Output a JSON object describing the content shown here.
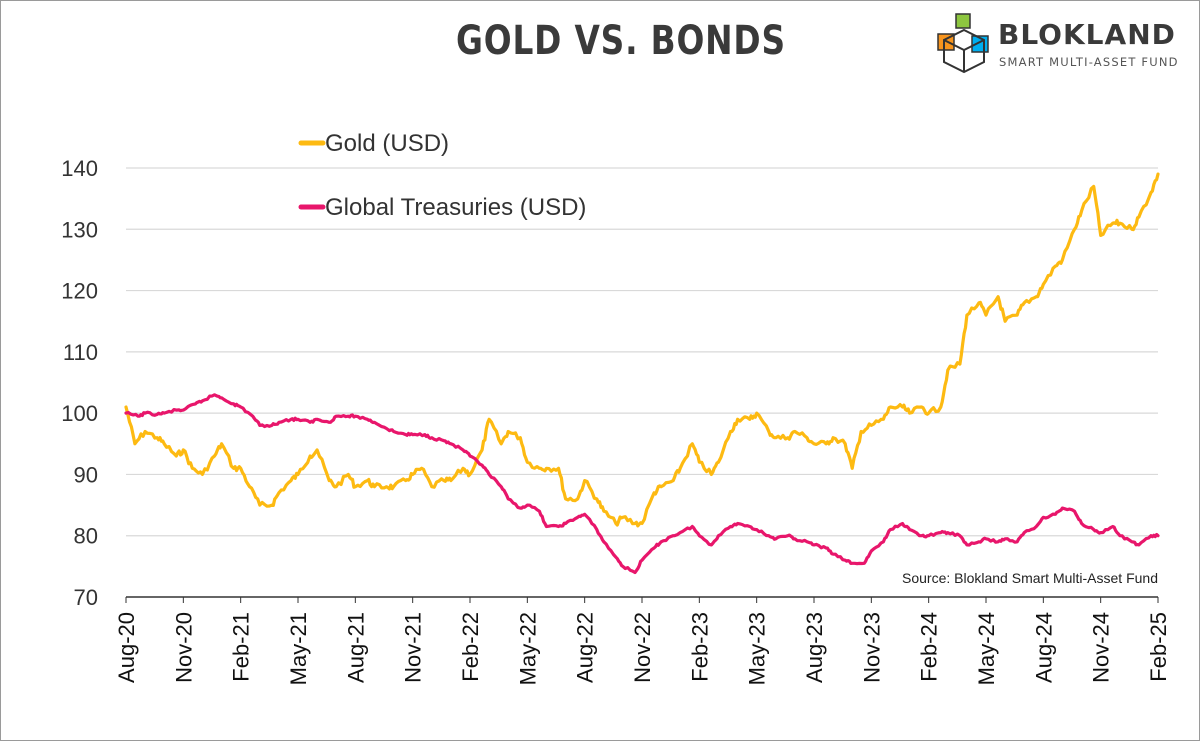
{
  "header": {
    "title": "GOLD VS. BONDS",
    "brand_name": "BLOKLAND",
    "brand_tagline": "SMART MULTI-ASSET FUND"
  },
  "source_note": "Source: Blokland Smart Multi-Asset Fund",
  "colors": {
    "gold": "#FDBA12",
    "treasuries": "#E8166B",
    "grid": "#d9d9d9",
    "axis_text": "#333333"
  },
  "chart_data": {
    "type": "line",
    "title": "GOLD VS. BONDS",
    "xlabel": "",
    "ylabel": "",
    "ylim": [
      70,
      140
    ],
    "yticks": [
      70,
      80,
      90,
      100,
      110,
      120,
      130,
      140
    ],
    "xlim": [
      "2020-08",
      "2025-02"
    ],
    "xticks": [
      "Aug-20",
      "Nov-20",
      "Feb-21",
      "May-21",
      "Aug-21",
      "Nov-21",
      "Feb-22",
      "May-22",
      "Aug-22",
      "Nov-22",
      "Feb-23",
      "May-23",
      "Aug-23",
      "Nov-23",
      "Feb-24",
      "May-24",
      "Aug-24",
      "Nov-24",
      "Feb-25"
    ],
    "grid": "horizontal",
    "legend_position": "top-left",
    "series": [
      {
        "name": "Gold (USD)",
        "color": "#FDBA12",
        "points": [
          [
            "2020-08",
            101
          ],
          [
            "2020-08-15",
            95
          ],
          [
            "2020-09",
            97
          ],
          [
            "2020-09-20",
            96
          ],
          [
            "2020-10",
            95
          ],
          [
            "2020-10-20",
            93
          ],
          [
            "2020-11",
            94
          ],
          [
            "2020-11-15",
            91
          ],
          [
            "2020-12",
            90
          ],
          [
            "2020-12-20",
            93
          ],
          [
            "2021-01",
            95
          ],
          [
            "2021-01-20",
            91
          ],
          [
            "2021-02",
            91
          ],
          [
            "2021-02-15",
            88
          ],
          [
            "2021-03",
            85
          ],
          [
            "2021-03-20",
            85
          ],
          [
            "2021-04",
            87
          ],
          [
            "2021-04-20",
            89
          ],
          [
            "2021-05",
            90
          ],
          [
            "2021-05-20",
            93
          ],
          [
            "2021-06",
            94
          ],
          [
            "2021-06-20",
            89
          ],
          [
            "2021-07",
            88
          ],
          [
            "2021-07-20",
            90
          ],
          [
            "2021-08",
            88
          ],
          [
            "2021-08-20",
            89
          ],
          [
            "2021-09",
            88
          ],
          [
            "2021-09-20",
            88
          ],
          [
            "2021-10",
            88
          ],
          [
            "2021-10-20",
            89
          ],
          [
            "2021-11",
            90
          ],
          [
            "2021-11-15",
            91
          ],
          [
            "2021-12",
            88
          ],
          [
            "2021-12-20",
            89
          ],
          [
            "2022-01",
            89
          ],
          [
            "2022-01-20",
            91
          ],
          [
            "2022-02",
            90
          ],
          [
            "2022-02-20",
            94
          ],
          [
            "2022-03",
            99
          ],
          [
            "2022-03-20",
            95
          ],
          [
            "2022-04",
            97
          ],
          [
            "2022-04-20",
            96
          ],
          [
            "2022-05",
            92
          ],
          [
            "2022-05-20",
            91
          ],
          [
            "2022-06",
            91
          ],
          [
            "2022-06-20",
            91
          ],
          [
            "2022-07",
            86
          ],
          [
            "2022-07-20",
            86
          ],
          [
            "2022-08",
            89
          ],
          [
            "2022-08-20",
            86
          ],
          [
            "2022-09",
            84
          ],
          [
            "2022-09-20",
            82
          ],
          [
            "2022-10",
            83
          ],
          [
            "2022-10-20",
            82
          ],
          [
            "2022-11",
            82
          ],
          [
            "2022-11-20",
            87
          ],
          [
            "2022-12",
            88
          ],
          [
            "2022-12-20",
            89
          ],
          [
            "2023-01",
            91
          ],
          [
            "2023-01-20",
            95
          ],
          [
            "2023-02",
            92
          ],
          [
            "2023-02-20",
            90
          ],
          [
            "2023-03",
            92
          ],
          [
            "2023-03-20",
            97
          ],
          [
            "2023-04",
            99
          ],
          [
            "2023-04-20",
            99
          ],
          [
            "2023-05",
            100
          ],
          [
            "2023-05-20",
            97
          ],
          [
            "2023-06",
            96
          ],
          [
            "2023-06-20",
            96
          ],
          [
            "2023-07",
            97
          ],
          [
            "2023-07-20",
            96
          ],
          [
            "2023-08",
            95
          ],
          [
            "2023-08-20",
            95
          ],
          [
            "2023-09",
            96
          ],
          [
            "2023-09-20",
            95
          ],
          [
            "2023-10",
            91
          ],
          [
            "2023-10-15",
            97
          ],
          [
            "2023-11",
            98
          ],
          [
            "2023-11-20",
            99
          ],
          [
            "2023-12",
            101
          ],
          [
            "2023-12-20",
            101
          ],
          [
            "2024-01",
            100
          ],
          [
            "2024-01-20",
            101
          ],
          [
            "2024-02",
            100
          ],
          [
            "2024-02-20",
            101
          ],
          [
            "2024-03",
            107
          ],
          [
            "2024-03-20",
            108
          ],
          [
            "2024-04",
            116
          ],
          [
            "2024-04-20",
            118
          ],
          [
            "2024-05",
            116
          ],
          [
            "2024-05-20",
            119
          ],
          [
            "2024-06",
            115
          ],
          [
            "2024-06-20",
            116
          ],
          [
            "2024-07",
            118
          ],
          [
            "2024-07-20",
            119
          ],
          [
            "2024-08",
            121
          ],
          [
            "2024-08-20",
            124
          ],
          [
            "2024-09",
            125
          ],
          [
            "2024-09-20",
            130
          ],
          [
            "2024-10",
            133
          ],
          [
            "2024-10-20",
            137
          ],
          [
            "2024-11",
            129
          ],
          [
            "2024-11-20",
            131
          ],
          [
            "2024-12",
            131
          ],
          [
            "2024-12-20",
            130
          ],
          [
            "2025-01",
            132
          ],
          [
            "2025-01-20",
            136
          ],
          [
            "2025-02",
            139
          ]
        ]
      },
      {
        "name": "Global Treasuries (USD)",
        "color": "#E8166B",
        "points": [
          [
            "2020-08",
            100
          ],
          [
            "2020-08-20",
            99.5
          ],
          [
            "2020-09",
            100
          ],
          [
            "2020-09-20",
            99.8
          ],
          [
            "2020-10",
            100
          ],
          [
            "2020-10-20",
            100.5
          ],
          [
            "2020-11",
            100.5
          ],
          [
            "2020-11-20",
            101.5
          ],
          [
            "2020-12",
            102
          ],
          [
            "2020-12-20",
            103
          ],
          [
            "2021-01",
            102.5
          ],
          [
            "2021-01-20",
            101.5
          ],
          [
            "2021-02",
            101
          ],
          [
            "2021-02-20",
            99.5
          ],
          [
            "2021-03",
            98
          ],
          [
            "2021-03-20",
            98
          ],
          [
            "2021-04",
            98.5
          ],
          [
            "2021-04-20",
            99
          ],
          [
            "2021-05",
            99
          ],
          [
            "2021-05-20",
            98.5
          ],
          [
            "2021-06",
            99
          ],
          [
            "2021-06-20",
            98.5
          ],
          [
            "2021-07",
            99.5
          ],
          [
            "2021-07-20",
            99.5
          ],
          [
            "2021-08",
            99.5
          ],
          [
            "2021-08-20",
            99
          ],
          [
            "2021-09",
            98.5
          ],
          [
            "2021-09-20",
            97.5
          ],
          [
            "2021-10",
            97
          ],
          [
            "2021-10-20",
            96.5
          ],
          [
            "2021-11",
            96.5
          ],
          [
            "2021-11-20",
            96.5
          ],
          [
            "2021-12",
            96
          ],
          [
            "2021-12-20",
            95.5
          ],
          [
            "2022-01",
            95
          ],
          [
            "2022-01-20",
            94
          ],
          [
            "2022-02",
            93
          ],
          [
            "2022-02-20",
            91.5
          ],
          [
            "2022-03",
            90
          ],
          [
            "2022-03-20",
            88
          ],
          [
            "2022-04",
            86
          ],
          [
            "2022-04-20",
            84.5
          ],
          [
            "2022-05",
            85
          ],
          [
            "2022-05-20",
            84
          ],
          [
            "2022-06",
            81.5
          ],
          [
            "2022-06-20",
            81.5
          ],
          [
            "2022-07",
            82
          ],
          [
            "2022-07-20",
            83
          ],
          [
            "2022-08",
            83.5
          ],
          [
            "2022-08-20",
            81
          ],
          [
            "2022-09",
            79
          ],
          [
            "2022-09-20",
            76.5
          ],
          [
            "2022-10",
            75
          ],
          [
            "2022-10-20",
            74
          ],
          [
            "2022-11",
            76
          ],
          [
            "2022-11-20",
            78
          ],
          [
            "2022-12",
            79
          ],
          [
            "2022-12-20",
            80
          ],
          [
            "2023-01",
            80.5
          ],
          [
            "2023-01-20",
            81.5
          ],
          [
            "2023-02",
            80
          ],
          [
            "2023-02-20",
            78.5
          ],
          [
            "2023-03",
            80
          ],
          [
            "2023-03-20",
            81.5
          ],
          [
            "2023-04",
            82
          ],
          [
            "2023-04-20",
            81.5
          ],
          [
            "2023-05",
            81
          ],
          [
            "2023-05-20",
            80
          ],
          [
            "2023-06",
            79.5
          ],
          [
            "2023-06-20",
            80
          ],
          [
            "2023-07",
            79.5
          ],
          [
            "2023-07-20",
            79
          ],
          [
            "2023-08",
            78.5
          ],
          [
            "2023-08-20",
            78
          ],
          [
            "2023-09",
            77
          ],
          [
            "2023-09-20",
            76
          ],
          [
            "2023-10",
            75.5
          ],
          [
            "2023-10-20",
            75.5
          ],
          [
            "2023-11",
            77.5
          ],
          [
            "2023-11-20",
            79
          ],
          [
            "2023-12",
            81
          ],
          [
            "2023-12-20",
            82
          ],
          [
            "2024-01",
            81
          ],
          [
            "2024-01-20",
            80
          ],
          [
            "2024-02",
            80
          ],
          [
            "2024-02-20",
            80.5
          ],
          [
            "2024-03",
            80.5
          ],
          [
            "2024-03-20",
            80
          ],
          [
            "2024-04",
            78.5
          ],
          [
            "2024-04-20",
            79
          ],
          [
            "2024-05",
            79.5
          ],
          [
            "2024-05-20",
            79
          ],
          [
            "2024-06",
            79.5
          ],
          [
            "2024-06-20",
            79
          ],
          [
            "2024-07",
            80.5
          ],
          [
            "2024-07-20",
            81.5
          ],
          [
            "2024-08",
            83
          ],
          [
            "2024-08-20",
            83.5
          ],
          [
            "2024-09",
            84.5
          ],
          [
            "2024-09-20",
            84
          ],
          [
            "2024-10",
            82
          ],
          [
            "2024-10-20",
            81
          ],
          [
            "2024-11",
            80.5
          ],
          [
            "2024-11-20",
            81.5
          ],
          [
            "2024-12",
            80
          ],
          [
            "2024-12-20",
            79
          ],
          [
            "2025-01",
            78.5
          ],
          [
            "2025-01-20",
            80
          ],
          [
            "2025-02",
            80
          ]
        ]
      }
    ]
  }
}
